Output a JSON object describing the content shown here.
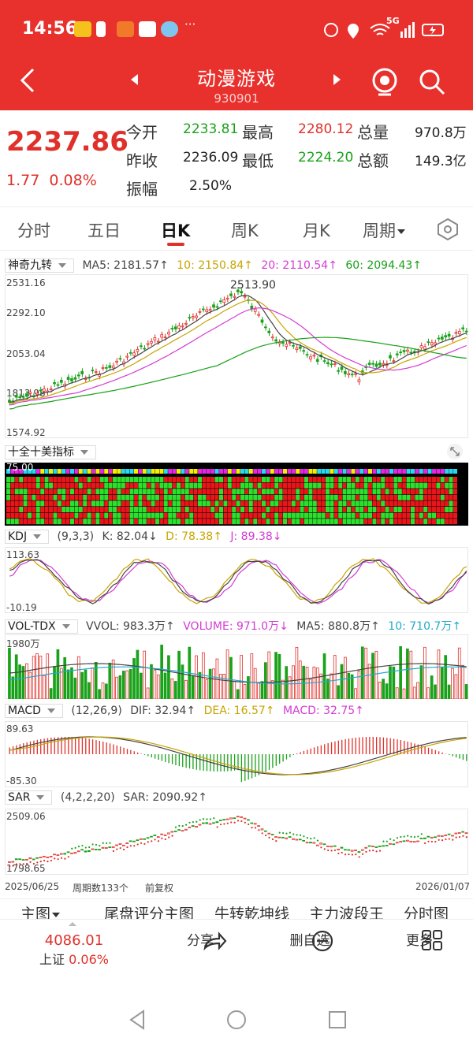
{
  "status": {
    "time": "14:56",
    "network": "5G",
    "dots": "···"
  },
  "nav": {
    "title": "动漫游戏",
    "code": "930901"
  },
  "quote": {
    "price": "2237.86",
    "change": "1.77",
    "change_pct": "0.08%",
    "open_label": "今开",
    "open": "2233.81",
    "high_label": "最高",
    "high": "2280.12",
    "volume_label": "总量",
    "volume": "970.8万",
    "prev_close_label": "昨收",
    "prev_close": "2236.09",
    "low_label": "最低",
    "low": "2224.20",
    "amount_label": "总额",
    "amount": "149.3亿",
    "amplitude_label": "振幅",
    "amplitude": "2.50%"
  },
  "tabs": [
    "分时",
    "五日",
    "日K",
    "周K",
    "月K",
    "周期"
  ],
  "active_tab": "日K",
  "main_chart": {
    "indicator": "神奇九转",
    "ma5": "MA5: 2181.57↑",
    "ma10": "10: 2150.84↑",
    "ma20": "20: 2110.54↑",
    "ma60": "60: 2094.43↑",
    "y_top": "2531.16",
    "y_upper": "2292.10",
    "y_mid": "2053.04",
    "y_low": "1813.98",
    "y_bottom": "1574.92",
    "peak_label": "2513.90",
    "colors": {
      "up": "#e0302a",
      "down": "#19a21a",
      "ma5": "#444444",
      "ma10": "#c8a400",
      "ma20": "#d43bd4",
      "ma60": "#18a018"
    }
  },
  "ten_panel": {
    "title": "十全十美指标",
    "y_label": "75.00"
  },
  "kdj": {
    "title": "KDJ",
    "params": "(9,3,3)",
    "k": "K: 82.04↓",
    "d": "D: 78.38↑",
    "j": "J: 89.38↓",
    "y_top": "113.63",
    "y_bottom": "-10.19"
  },
  "vol": {
    "title": "VOL-TDX",
    "vvol": "VVOL: 983.3万↑",
    "volume": "VOLUME: 971.0万↓",
    "ma5": "MA5: 880.8万↑",
    "ma10": "10: 710.7万↑",
    "y_top": "1980万"
  },
  "macd": {
    "title": "MACD",
    "params": "(12,26,9)",
    "dif": "DIF: 32.94↑",
    "dea": "DEA: 16.57↑",
    "macd": "MACD: 32.75↑",
    "y_top": "89.63",
    "y_bottom": "-85.30"
  },
  "sar": {
    "title": "SAR",
    "params": "(4,2,2,20)",
    "sar": "SAR: 2090.92↑",
    "y_top": "2509.06",
    "y_bottom": "1798.65"
  },
  "axis_footer": {
    "start_date": "2025/06/25",
    "period_count": "周期数133个",
    "adjust": "前复权",
    "end_date": "2026/01/07"
  },
  "subtabs": [
    "主图",
    "尾盘评分主图",
    "牛转乾坤线",
    "主力波段王",
    "分时图"
  ],
  "footer": {
    "index_value": "4086.01",
    "index_name": "上证",
    "index_pct": "0.06%",
    "share_label": "分享",
    "remove_label": "删自选",
    "more_label": "更多"
  }
}
